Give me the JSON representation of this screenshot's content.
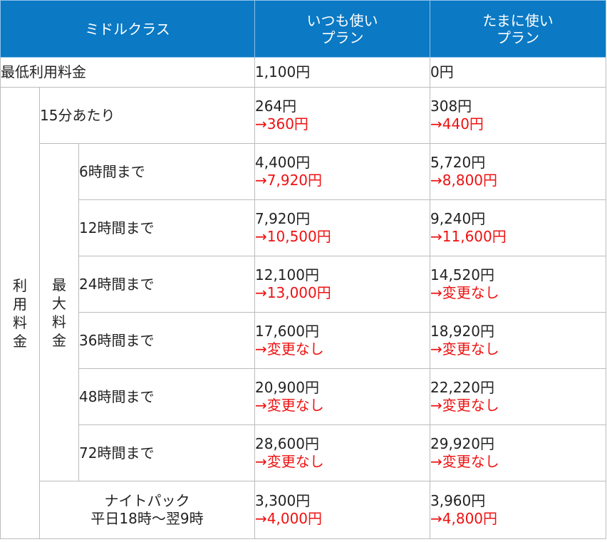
{
  "header": {
    "class_name": "ミドルクラス",
    "plan_a": [
      "いつも使い",
      "プラン"
    ],
    "plan_b": [
      "たまに使い",
      "プラン"
    ]
  },
  "min_fee": {
    "label": "最低利用料金",
    "plan_a": "1,100円",
    "plan_b": "0円"
  },
  "usage_fee_label": [
    "利",
    "用",
    "料",
    "金"
  ],
  "per15": {
    "label": "15分あたり",
    "plan_a": {
      "old": "264円",
      "new": "→360円"
    },
    "plan_b": {
      "old": "308円",
      "new": "→440円"
    }
  },
  "max_fee_label": [
    "最",
    "大",
    "料",
    "金"
  ],
  "max_rows": [
    {
      "label": "6時間まで",
      "plan_a": {
        "old": "4,400円",
        "new": "→7,920円"
      },
      "plan_b": {
        "old": "5,720円",
        "new": "→8,800円"
      }
    },
    {
      "label": "12時間まで",
      "plan_a": {
        "old": "7,920円",
        "new": "→10,500円"
      },
      "plan_b": {
        "old": "9,240円",
        "new": "→11,600円"
      }
    },
    {
      "label": "24時間まで",
      "plan_a": {
        "old": "12,100円",
        "new": "→13,000円"
      },
      "plan_b": {
        "old": "14,520円",
        "new": "→変更なし"
      }
    },
    {
      "label": "36時間まで",
      "plan_a": {
        "old": "17,600円",
        "new": "→変更なし"
      },
      "plan_b": {
        "old": "18,920円",
        "new": "→変更なし"
      }
    },
    {
      "label": "48時間まで",
      "plan_a": {
        "old": "20,900円",
        "new": "→変更なし"
      },
      "plan_b": {
        "old": "22,220円",
        "new": "→変更なし"
      }
    },
    {
      "label": "72時間まで",
      "plan_a": {
        "old": "28,600円",
        "new": "→変更なし"
      },
      "plan_b": {
        "old": "29,920円",
        "new": "→変更なし"
      }
    }
  ],
  "night": {
    "label": [
      "ナイトパック",
      "平日18時～翌9時"
    ],
    "plan_a": {
      "old": "3,300円",
      "new": "→4,000円"
    },
    "plan_b": {
      "old": "3,960円",
      "new": "→4,800円"
    }
  },
  "colors": {
    "header_bg": "#0b79c4",
    "header_text": "#ffffff",
    "new_price": "#ee1111",
    "border": "#bcbcbc"
  }
}
